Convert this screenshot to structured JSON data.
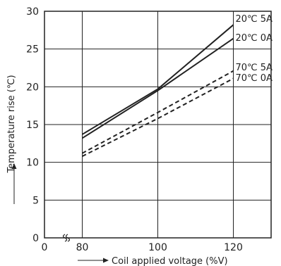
{
  "chart_data": {
    "type": "line",
    "xlabel": "Coil applied voltage (%V)",
    "ylabel": "Temperature rise (℃)",
    "xlim": [
      70,
      130
    ],
    "ylim": [
      0,
      30
    ],
    "x_ticks": [
      "0",
      "80",
      "100",
      "120"
    ],
    "y_ticks": [
      "0",
      "5",
      "10",
      "15",
      "20",
      "25",
      "30"
    ],
    "grid": true,
    "axis_break": "x",
    "series": [
      {
        "name": "20℃ 5A",
        "x": [
          80,
          100,
          120
        ],
        "y": [
          13.7,
          19.7,
          28.2
        ],
        "style": "solid"
      },
      {
        "name": "20℃ 0A",
        "x": [
          80,
          100,
          120
        ],
        "y": [
          13.2,
          19.5,
          26.4
        ],
        "style": "solid"
      },
      {
        "name": "70℃ 5A",
        "x": [
          80,
          100,
          120
        ],
        "y": [
          11.2,
          16.6,
          22.1
        ],
        "style": "dashed"
      },
      {
        "name": "70℃ 0A",
        "x": [
          80,
          100,
          120
        ],
        "y": [
          10.8,
          15.8,
          21.1
        ],
        "style": "dashed"
      }
    ]
  },
  "colors": {
    "line": "#222222",
    "grid": "#222222"
  }
}
